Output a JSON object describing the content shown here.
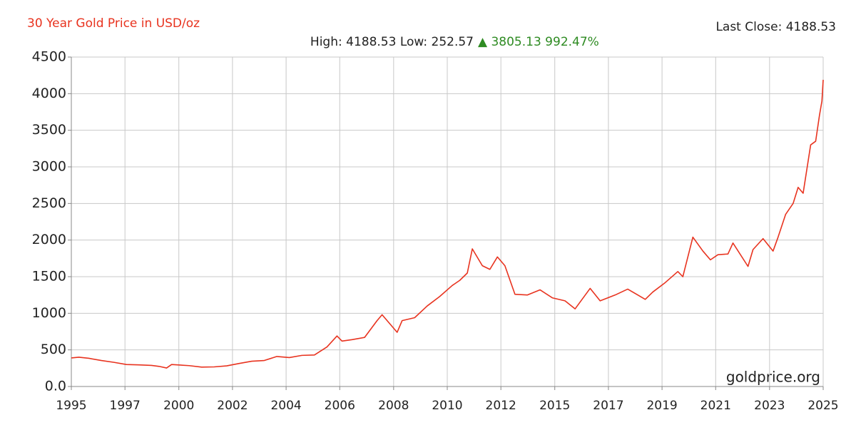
{
  "chart_data": {
    "type": "line",
    "title": "30 Year Gold Price in USD/oz",
    "last_close": "Last Close: 4188.53",
    "subtitle": "High: 4188.53 Low: 252.57",
    "change": "▲ 3805.13 992.47%",
    "watermark": "goldprice.org",
    "color": "#e8331f",
    "title_color": "#e8331f",
    "change_color": "#2e8b22",
    "grid": true,
    "xlim": [
      1995.8,
      2025.8
    ],
    "xticks": [
      {
        "value": 1995.8,
        "label": "1995"
      },
      {
        "value": 1997.94,
        "label": "1997"
      },
      {
        "value": 2000.09,
        "label": "2000"
      },
      {
        "value": 2002.23,
        "label": "2002"
      },
      {
        "value": 2004.37,
        "label": "2004"
      },
      {
        "value": 2006.51,
        "label": "2006"
      },
      {
        "value": 2008.66,
        "label": "2008"
      },
      {
        "value": 2010.8,
        "label": "2010"
      },
      {
        "value": 2012.94,
        "label": "2012"
      },
      {
        "value": 2015.09,
        "label": "2015"
      },
      {
        "value": 2017.23,
        "label": "2017"
      },
      {
        "value": 2019.37,
        "label": "2019"
      },
      {
        "value": 2021.51,
        "label": "2021"
      },
      {
        "value": 2023.66,
        "label": "2023"
      },
      {
        "value": 2025.8,
        "label": "2025"
      }
    ],
    "ylim": [
      0,
      4500
    ],
    "yticks": [
      {
        "value": 0,
        "label": "0.0"
      },
      500,
      1000,
      1500,
      2000,
      2500,
      3000,
      3500,
      4000,
      4500
    ],
    "x": [
      1995.8,
      1996.1,
      1996.5,
      1997.0,
      1997.5,
      1998.0,
      1998.5,
      1999.0,
      1999.3,
      1999.6,
      1999.8,
      2000.5,
      2001.0,
      2001.5,
      2002.0,
      2002.5,
      2003.0,
      2003.5,
      2004.0,
      2004.5,
      2005.0,
      2005.5,
      2006.0,
      2006.4,
      2006.6,
      2007.0,
      2007.5,
      2008.0,
      2008.2,
      2008.8,
      2009.0,
      2009.5,
      2010.0,
      2010.5,
      2011.0,
      2011.3,
      2011.6,
      2011.8,
      2012.2,
      2012.5,
      2012.8,
      2013.1,
      2013.5,
      2014.0,
      2014.5,
      2015.0,
      2015.5,
      2015.9,
      2016.5,
      2016.9,
      2017.5,
      2018.0,
      2018.7,
      2019.0,
      2019.5,
      2020.0,
      2020.2,
      2020.6,
      2021.0,
      2021.3,
      2021.6,
      2022.0,
      2022.2,
      2022.8,
      2023.0,
      2023.4,
      2023.8,
      2024.0,
      2024.3,
      2024.6,
      2024.8,
      2025.0,
      2025.3,
      2025.5,
      2025.65,
      2025.75,
      2025.8
    ],
    "values": [
      390,
      400,
      385,
      355,
      330,
      300,
      295,
      288,
      275,
      252.57,
      300,
      285,
      265,
      268,
      282,
      315,
      345,
      355,
      410,
      395,
      425,
      430,
      540,
      690,
      620,
      640,
      670,
      900,
      980,
      740,
      900,
      940,
      1100,
      1230,
      1380,
      1450,
      1550,
      1880,
      1650,
      1600,
      1770,
      1650,
      1260,
      1250,
      1320,
      1210,
      1170,
      1060,
      1340,
      1170,
      1250,
      1330,
      1190,
      1290,
      1420,
      1570,
      1500,
      2040,
      1850,
      1730,
      1800,
      1810,
      1960,
      1640,
      1870,
      2020,
      1850,
      2040,
      2350,
      2500,
      2720,
      2640,
      3300,
      3350,
      3700,
      3900,
      4188.53
    ]
  }
}
